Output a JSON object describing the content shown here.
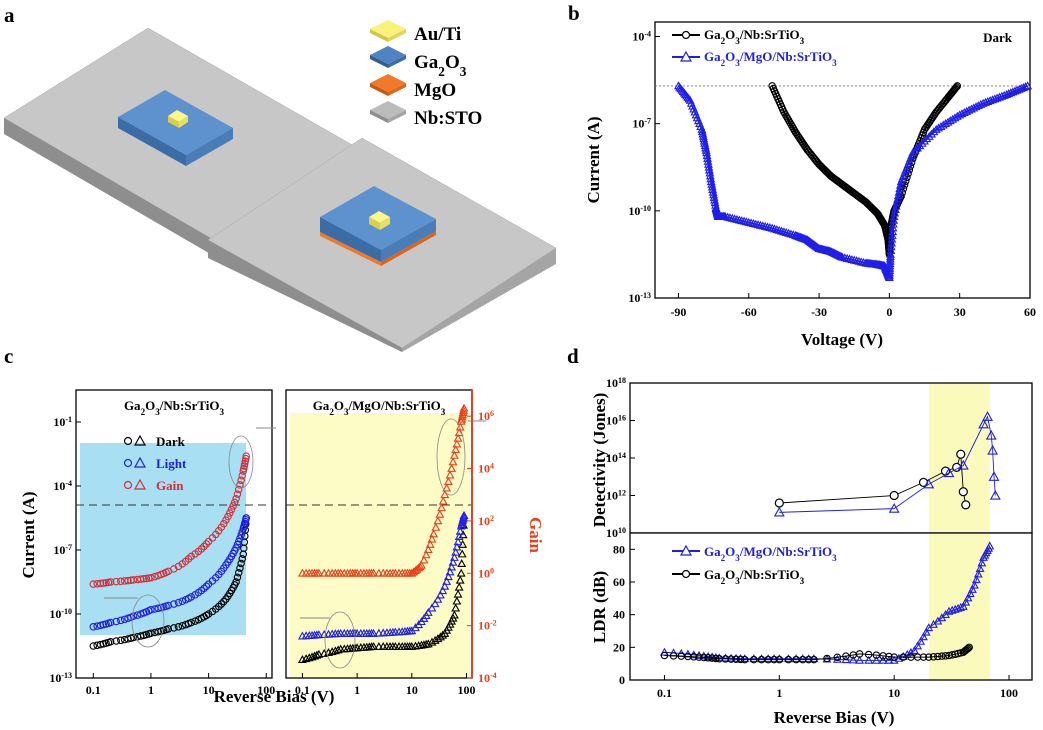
{
  "panel_labels": [
    "a",
    "b",
    "c",
    "d"
  ],
  "panel_a": {
    "legend": [
      {
        "label": "Au/Ti",
        "color": "#fbf27a"
      },
      {
        "label": "Ga2O3",
        "color": "#4f83c1"
      },
      {
        "label": "MgO",
        "color": "#f07a2a"
      },
      {
        "label": "Nb:STO",
        "color": "#bdbcbd"
      }
    ]
  },
  "chart_data": [
    {
      "id": "b",
      "type": "line",
      "title": "Dark",
      "xlabel": "Voltage (V)",
      "ylabel": "Current (A)",
      "xlim": [
        -100,
        60
      ],
      "ylim_log10": [
        -13,
        -3.5
      ],
      "xticks": [
        -90,
        -60,
        -30,
        0,
        30,
        60
      ],
      "yticks_exp": [
        -13,
        -10,
        -7,
        -4
      ],
      "ref_line_log10": -5.7,
      "series": [
        {
          "name": "Ga2O3/Nb:SrTiO3",
          "color": "#000000",
          "marker": "circle",
          "x": [
            -50,
            -45,
            -40,
            -35,
            -30,
            -25,
            -20,
            -15,
            -10,
            -5,
            -2,
            -0.5,
            0,
            0.5,
            2,
            5,
            10,
            15,
            20,
            25,
            29
          ],
          "y_log10": [
            -5.7,
            -6.6,
            -7.3,
            -7.9,
            -8.4,
            -8.8,
            -9.1,
            -9.4,
            -9.7,
            -10.1,
            -10.5,
            -11,
            -11.5,
            -10.6,
            -10,
            -9.5,
            -8.2,
            -7.2,
            -6.6,
            -6.1,
            -5.7
          ]
        },
        {
          "name": "Ga2O3/MgO/Nb:SrTiO3",
          "color": "#1f1fe6",
          "marker": "triangle",
          "x": [
            -90,
            -85,
            -80,
            -78,
            -76,
            -74,
            -73,
            -70,
            -60,
            -50,
            -40,
            -35,
            -30,
            -25,
            -20,
            -10,
            -5,
            -2,
            0,
            0.5,
            2,
            5,
            10,
            20,
            30,
            40,
            50,
            59
          ],
          "y_log10": [
            -5.7,
            -6.2,
            -7.2,
            -8,
            -9,
            -9.9,
            -10.2,
            -10.2,
            -10.4,
            -10.6,
            -10.85,
            -11,
            -11.3,
            -11.4,
            -11.6,
            -11.8,
            -11.85,
            -11.9,
            -12.3,
            -11.5,
            -10.2,
            -9,
            -8,
            -7.2,
            -6.7,
            -6.3,
            -6,
            -5.7
          ]
        }
      ]
    },
    {
      "id": "c-left",
      "type": "scatter",
      "title": "Ga2O3/Nb:SrTiO3",
      "xlabel": "Reverse Bias (V)",
      "ylabel": "Current (A)",
      "xlim_log10": [
        -1.3,
        2.1
      ],
      "ylim_log10": [
        -13,
        0.5
      ],
      "xticks": [
        "0.1",
        "1",
        "10",
        "100"
      ],
      "yticks_exp": [
        -13,
        -10,
        -7,
        -4,
        -1
      ],
      "legend": [
        "Dark",
        "Light",
        "Gain"
      ],
      "shade_color": "#a8dff2",
      "series": [
        {
          "name": "Dark",
          "color": "#000000",
          "x": [
            0.1,
            0.2,
            0.5,
            1,
            2,
            5,
            10,
            20,
            30,
            40,
            45
          ],
          "y_log10": [
            -11.5,
            -11.3,
            -11.1,
            -10.9,
            -10.7,
            -10.4,
            -10.0,
            -9.3,
            -8.5,
            -7.2,
            -5.5
          ]
        },
        {
          "name": "Light",
          "color": "#1f1fe6",
          "x": [
            0.1,
            0.2,
            0.5,
            1,
            2,
            5,
            10,
            20,
            30,
            40,
            45
          ],
          "y_log10": [
            -10.6,
            -10.4,
            -10.1,
            -9.8,
            -9.6,
            -9.2,
            -8.6,
            -7.7,
            -6.9,
            -6.0,
            -5.5
          ]
        },
        {
          "name": "Gain",
          "color": "#d0303a",
          "x": [
            0.1,
            0.2,
            0.5,
            1,
            2,
            5,
            10,
            20,
            30,
            40,
            45
          ],
          "y_log10": [
            -8.6,
            -8.5,
            -8.4,
            -8.3,
            -8.0,
            -7.3,
            -6.6,
            -5.6,
            -4.6,
            -3.3,
            -2.6
          ]
        }
      ]
    },
    {
      "id": "c-right",
      "type": "scatter",
      "title": "Ga2O3/MgO/Nb:SrTiO3",
      "xlabel": "Reverse Bias (V)",
      "ylabel": "Gain",
      "xlim_log10": [
        -1.3,
        2.1
      ],
      "ylim_log10": [
        -4,
        7
      ],
      "xticks": [
        "0.1",
        "1",
        "10",
        "100"
      ],
      "yticks_exp": [
        -4,
        -2,
        0,
        2,
        4,
        6
      ],
      "shade_color": "#fdfbc6",
      "series": [
        {
          "name": "Dark",
          "color": "#000000",
          "x": [
            0.1,
            0.2,
            0.5,
            1,
            2,
            5,
            10,
            20,
            40,
            60,
            80,
            90
          ],
          "y_log10": [
            -3.3,
            -3.1,
            -2.9,
            -2.85,
            -2.8,
            -2.8,
            -2.8,
            -2.7,
            -2.3,
            -1.6,
            0.0,
            2.2
          ]
        },
        {
          "name": "Light",
          "color": "#1f1fe6",
          "x": [
            0.1,
            0.2,
            0.5,
            1,
            2,
            5,
            10,
            20,
            40,
            60,
            80,
            90
          ],
          "y_log10": [
            -2.4,
            -2.35,
            -2.3,
            -2.3,
            -2.3,
            -2.25,
            -2.2,
            -1.5,
            -0.5,
            0.6,
            1.8,
            2.2
          ]
        },
        {
          "name": "Gain",
          "color": "#e8401a",
          "x": [
            0.1,
            0.2,
            0.5,
            1,
            2,
            5,
            10,
            15,
            25,
            40,
            60,
            80,
            90
          ],
          "y_log10": [
            0,
            0,
            0,
            0,
            0,
            0,
            0,
            0.3,
            1.5,
            3.0,
            4.5,
            5.8,
            6.3
          ]
        }
      ]
    },
    {
      "id": "d-top",
      "type": "scatter",
      "xlabel": "Reverse Bias (V)",
      "ylabel": "Detectivity (Jones)",
      "xlim_log10": [
        -1.3,
        2.2
      ],
      "ylim_log10": [
        10,
        18
      ],
      "yticks_exp": [
        10,
        12,
        14,
        16,
        18
      ],
      "shade_color": "#fafabc",
      "shade_x": [
        20,
        68
      ],
      "series": [
        {
          "name": "Ga2O3/Nb:SrTiO3",
          "color": "#000000",
          "marker": "circle",
          "x": [
            1,
            10,
            18,
            28,
            35,
            38,
            40,
            42
          ],
          "y_log10": [
            11.6,
            12,
            12.7,
            13.3,
            13.5,
            14.2,
            12.2,
            11.5
          ]
        },
        {
          "name": "Ga2O3/MgO/Nb:SrTiO3",
          "color": "#1f1fe6",
          "marker": "triangle",
          "x": [
            1,
            10,
            20,
            30,
            40,
            60,
            65,
            70,
            72,
            74,
            76
          ],
          "y_log10": [
            11.1,
            11.3,
            12.6,
            13.2,
            13.6,
            15.8,
            16.2,
            15.2,
            14.4,
            13.0,
            12.0
          ]
        }
      ]
    },
    {
      "id": "d-bottom",
      "type": "scatter",
      "xlabel": "Reverse Bias (V)",
      "ylabel": "LDR (dB)",
      "xlim_log10": [
        -1.3,
        2.2
      ],
      "ylim": [
        0,
        90
      ],
      "xticks": [
        "0.1",
        "1",
        "10",
        "100"
      ],
      "yticks": [
        0,
        20,
        40,
        60,
        80
      ],
      "shade_color": "#fafabc",
      "shade_x": [
        20,
        68
      ],
      "series": [
        {
          "name": "Ga2O3/MgO/Nb:SrTiO3",
          "color": "#1f1fe6",
          "marker": "triangle",
          "x": [
            0.1,
            0.2,
            0.3,
            0.5,
            1,
            2,
            5,
            10,
            15,
            20,
            30,
            40,
            50,
            60,
            68
          ],
          "y": [
            17,
            15,
            13.5,
            13,
            13,
            13,
            12,
            12,
            18,
            32,
            42,
            45,
            58,
            75,
            82
          ]
        },
        {
          "name": "Ga2O3/Nb:SrTiO3",
          "color": "#000000",
          "marker": "circle",
          "x": [
            0.1,
            0.2,
            0.3,
            0.5,
            1,
            2,
            5,
            10,
            20,
            30,
            40,
            45
          ],
          "y": [
            15,
            14,
            13,
            12.5,
            12.5,
            12.5,
            16,
            14,
            14,
            15,
            17,
            20
          ]
        }
      ]
    }
  ]
}
